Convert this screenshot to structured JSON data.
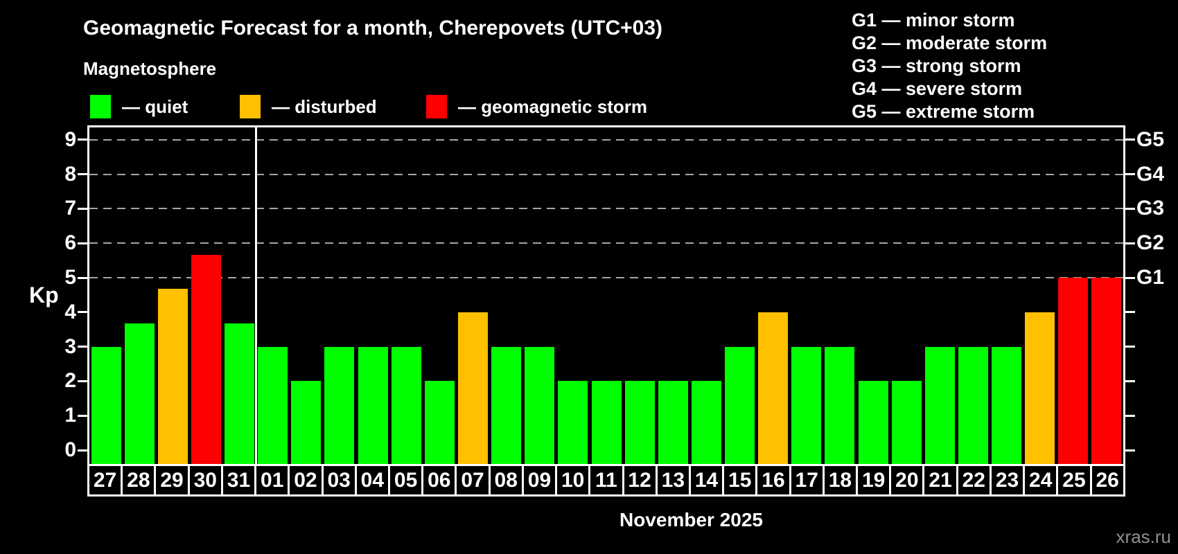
{
  "header": {
    "title": "Geomagnetic Forecast for a month, Cherepovets (UTC+03)",
    "subtitle": "Magnetosphere"
  },
  "legend": {
    "items": [
      {
        "id": "quiet",
        "color": "#00ff00",
        "label": "— quiet"
      },
      {
        "id": "disturbed",
        "color": "#ffc000",
        "label": "— disturbed"
      },
      {
        "id": "storm",
        "color": "#ff0000",
        "label": "— geomagnetic storm"
      }
    ]
  },
  "storm_scale_legend": {
    "lines": [
      "G1 — minor storm",
      "G2 — moderate storm",
      "G3 — strong storm",
      "G4 — severe storm",
      "G5 — extreme storm"
    ]
  },
  "watermark": "xras.ru",
  "chart_data": {
    "type": "bar",
    "ylabel": "Kp",
    "ylim": [
      0,
      9
    ],
    "grid": "dashed horizontal lines at Kp 5-9 (G1-G5)",
    "legend_position": "top-left",
    "xaxis_title": "November 2025",
    "categories": [
      "27",
      "28",
      "29",
      "30",
      "31",
      "01",
      "02",
      "03",
      "04",
      "05",
      "06",
      "07",
      "08",
      "09",
      "10",
      "11",
      "12",
      "13",
      "14",
      "15",
      "16",
      "17",
      "18",
      "19",
      "20",
      "21",
      "22",
      "23",
      "24",
      "25",
      "26"
    ],
    "values": [
      3,
      3.67,
      4.67,
      5.67,
      3.67,
      3,
      2,
      3,
      3,
      3,
      2,
      4,
      3,
      3,
      2,
      2,
      2,
      2,
      2,
      3,
      4,
      3,
      3,
      2,
      2,
      3,
      3,
      3,
      4,
      5,
      5
    ],
    "statuses": [
      "quiet",
      "quiet",
      "disturbed",
      "storm",
      "quiet",
      "quiet",
      "quiet",
      "quiet",
      "quiet",
      "quiet",
      "quiet",
      "disturbed",
      "quiet",
      "quiet",
      "quiet",
      "quiet",
      "quiet",
      "quiet",
      "quiet",
      "quiet",
      "disturbed",
      "quiet",
      "quiet",
      "quiet",
      "quiet",
      "quiet",
      "quiet",
      "quiet",
      "disturbed",
      "storm",
      "storm"
    ],
    "status_colors": {
      "quiet": "#00ff00",
      "disturbed": "#ffc000",
      "storm": "#ff0000"
    },
    "left_ticks": [
      0,
      1,
      2,
      3,
      4,
      5,
      6,
      7,
      8,
      9
    ],
    "right_ticks": [
      0,
      1,
      2,
      3,
      4,
      5,
      6,
      7,
      8,
      9
    ],
    "gridline_values": [
      5,
      6,
      7,
      8,
      9
    ],
    "right_axis_labels": [
      {
        "value": 5,
        "label": "G1"
      },
      {
        "value": 6,
        "label": "G2"
      },
      {
        "value": 7,
        "label": "G3"
      },
      {
        "value": 8,
        "label": "G4"
      },
      {
        "value": 9,
        "label": "G5"
      }
    ],
    "month_separator_after_category": "31"
  }
}
